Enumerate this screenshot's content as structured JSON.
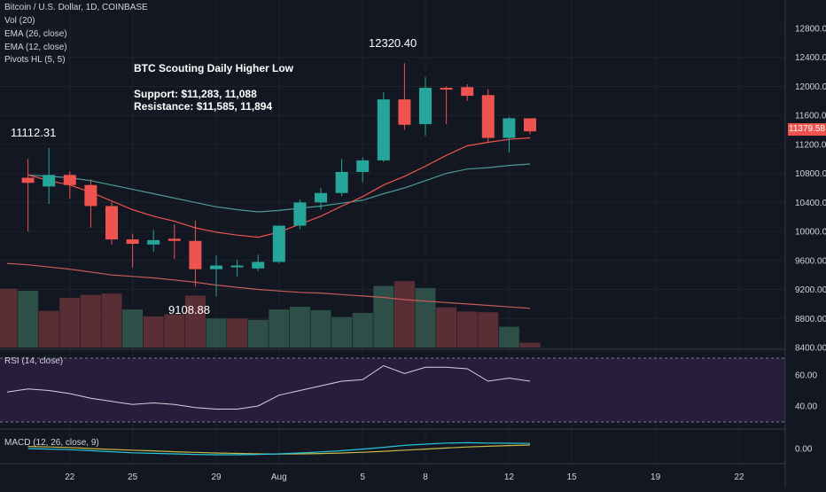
{
  "legends": {
    "symbol": "Bitcoin / U.S. Dollar, 1D, COINBASE",
    "volume": "Vol (20)",
    "ema26": "EMA (26, close)",
    "ema12": "EMA (12, close)",
    "pivots": "Pivots HL (5, 5)",
    "rsi": "RSI (14, close)",
    "macd": "MACD (12, 26, close, 9)"
  },
  "annotation": {
    "title": "BTC Scouting Daily Higher Low",
    "support": "Support: $11,283, 11,088",
    "resistance": "Resistance: $11,585, 11,894"
  },
  "pivots": {
    "high_left": "11112.31",
    "low": "9108.88",
    "high": "12320.40"
  },
  "current_price": "11379.58",
  "colors": {
    "up": "#26a69a",
    "down": "#ef5350",
    "ema12": "#ef5350",
    "ema26": "#4a9a94",
    "rsi_band": "#2a2040",
    "macd_line": "#26c6da",
    "signal_line": "#c9b84a"
  },
  "chart_data": {
    "type": "candlestick",
    "title": "Bitcoin / U.S. Dollar, 1D, COINBASE",
    "price_axis_ticks": [
      12800,
      12400,
      12000,
      11600,
      11200,
      10800,
      10400,
      10000,
      9600,
      9200,
      8800,
      8400
    ],
    "price_range": [
      8400,
      12900
    ],
    "date_axis_ticks": [
      "22",
      "25",
      "29",
      "Aug",
      "5",
      "8",
      "12",
      "15",
      "19",
      "22"
    ],
    "candles": [
      {
        "day": 1,
        "o": 10740,
        "h": 11000,
        "l": 10000,
        "c": 10670
      },
      {
        "day": 2,
        "o": 10620,
        "h": 11150,
        "l": 10380,
        "c": 10780
      },
      {
        "day": 3,
        "o": 10780,
        "h": 10830,
        "l": 10450,
        "c": 10640
      },
      {
        "day": 4,
        "o": 10640,
        "h": 10720,
        "l": 10050,
        "c": 10350
      },
      {
        "day": 5,
        "o": 10350,
        "h": 10400,
        "l": 9820,
        "c": 9890
      },
      {
        "day": 6,
        "o": 9890,
        "h": 9970,
        "l": 9500,
        "c": 9830
      },
      {
        "day": 7,
        "o": 9820,
        "h": 10020,
        "l": 9720,
        "c": 9880
      },
      {
        "day": 8,
        "o": 9900,
        "h": 10100,
        "l": 9620,
        "c": 9870
      },
      {
        "day": 9,
        "o": 9870,
        "h": 10150,
        "l": 9240,
        "c": 9480
      },
      {
        "day": 10,
        "o": 9480,
        "h": 9670,
        "l": 9109,
        "c": 9530
      },
      {
        "day": 11,
        "o": 9510,
        "h": 9610,
        "l": 9380,
        "c": 9530
      },
      {
        "day": 12,
        "o": 9490,
        "h": 9680,
        "l": 9450,
        "c": 9580
      },
      {
        "day": 13,
        "o": 9580,
        "h": 10080,
        "l": 9560,
        "c": 10080
      },
      {
        "day": 14,
        "o": 10080,
        "h": 10440,
        "l": 10030,
        "c": 10400
      },
      {
        "day": 15,
        "o": 10400,
        "h": 10600,
        "l": 10300,
        "c": 10530
      },
      {
        "day": 16,
        "o": 10530,
        "h": 11000,
        "l": 10490,
        "c": 10820
      },
      {
        "day": 17,
        "o": 10820,
        "h": 11020,
        "l": 10680,
        "c": 10980
      },
      {
        "day": 18,
        "o": 10980,
        "h": 11920,
        "l": 10960,
        "c": 11820
      },
      {
        "day": 19,
        "o": 11820,
        "h": 12320,
        "l": 11400,
        "c": 11470
      },
      {
        "day": 20,
        "o": 11480,
        "h": 12130,
        "l": 11320,
        "c": 11980
      },
      {
        "day": 21,
        "o": 11980,
        "h": 12000,
        "l": 11480,
        "c": 11960
      },
      {
        "day": 22,
        "o": 11990,
        "h": 12030,
        "l": 11800,
        "c": 11870
      },
      {
        "day": 23,
        "o": 11880,
        "h": 11960,
        "l": 11220,
        "c": 11290
      },
      {
        "day": 24,
        "o": 11290,
        "h": 11580,
        "l": 11090,
        "c": 11560
      },
      {
        "day": 25,
        "o": 11560,
        "h": 11560,
        "l": 11340,
        "c": 11380
      }
    ],
    "volume": [
      {
        "day": 0,
        "v": 0.85,
        "dir": "down"
      },
      {
        "day": 1,
        "v": 0.82,
        "dir": "up"
      },
      {
        "day": 2,
        "v": 0.53,
        "dir": "down"
      },
      {
        "day": 3,
        "v": 0.72,
        "dir": "down"
      },
      {
        "day": 4,
        "v": 0.76,
        "dir": "down"
      },
      {
        "day": 5,
        "v": 0.78,
        "dir": "down"
      },
      {
        "day": 6,
        "v": 0.55,
        "dir": "up"
      },
      {
        "day": 7,
        "v": 0.45,
        "dir": "down"
      },
      {
        "day": 8,
        "v": 0.48,
        "dir": "down"
      },
      {
        "day": 9,
        "v": 0.75,
        "dir": "down"
      },
      {
        "day": 10,
        "v": 0.42,
        "dir": "up"
      },
      {
        "day": 11,
        "v": 0.42,
        "dir": "down"
      },
      {
        "day": 12,
        "v": 0.4,
        "dir": "up"
      },
      {
        "day": 13,
        "v": 0.55,
        "dir": "up"
      },
      {
        "day": 14,
        "v": 0.59,
        "dir": "up"
      },
      {
        "day": 15,
        "v": 0.54,
        "dir": "up"
      },
      {
        "day": 16,
        "v": 0.44,
        "dir": "up"
      },
      {
        "day": 17,
        "v": 0.5,
        "dir": "up"
      },
      {
        "day": 18,
        "v": 0.89,
        "dir": "up"
      },
      {
        "day": 19,
        "v": 0.96,
        "dir": "down"
      },
      {
        "day": 20,
        "v": 0.86,
        "dir": "up"
      },
      {
        "day": 21,
        "v": 0.58,
        "dir": "down"
      },
      {
        "day": 22,
        "v": 0.52,
        "dir": "down"
      },
      {
        "day": 23,
        "v": 0.51,
        "dir": "down"
      },
      {
        "day": 24,
        "v": 0.3,
        "dir": "up"
      },
      {
        "day": 25,
        "v": 0.07,
        "dir": "down"
      }
    ],
    "ema12": [
      10780,
      10700,
      10640,
      10540,
      10420,
      10300,
      10210,
      10140,
      10050,
      9990,
      9950,
      9920,
      9990,
      10100,
      10210,
      10350,
      10480,
      10640,
      10760,
      10900,
      11050,
      11180,
      11230,
      11270,
      11290
    ],
    "ema26": [
      10780,
      10760,
      10740,
      10700,
      10640,
      10580,
      10520,
      10460,
      10400,
      10340,
      10300,
      10270,
      10290,
      10320,
      10350,
      10390,
      10430,
      10520,
      10600,
      10700,
      10800,
      10860,
      10880,
      10910,
      10930
    ],
    "lower_ma": [
      9560,
      9540,
      9510,
      9480,
      9440,
      9400,
      9380,
      9360,
      9330,
      9300,
      9260,
      9230,
      9200,
      9180,
      9160,
      9150,
      9130,
      9110,
      9090,
      9060,
      9040,
      9020,
      9000,
      8980,
      8960,
      8940
    ],
    "rsi": {
      "ticks": [
        60.0,
        40.0
      ],
      "range": [
        25,
        75
      ],
      "values": [
        49,
        51,
        50,
        48,
        45,
        43,
        41,
        42,
        41,
        39,
        38,
        38,
        40,
        47,
        50,
        53,
        56,
        57,
        66,
        61,
        65,
        65,
        64,
        56,
        58,
        56
      ]
    },
    "macd": {
      "ticks": [
        0.0
      ],
      "macd": [
        0.0,
        -0.05,
        -0.1,
        -0.2,
        -0.3,
        -0.4,
        -0.45,
        -0.5,
        -0.55,
        -0.58,
        -0.58,
        -0.55,
        -0.5,
        -0.42,
        -0.32,
        -0.2,
        -0.05,
        0.12,
        0.3,
        0.42,
        0.52,
        0.55,
        0.52,
        0.5,
        0.48
      ],
      "signal": [
        0.2,
        0.15,
        0.1,
        0.0,
        -0.08,
        -0.15,
        -0.22,
        -0.3,
        -0.36,
        -0.42,
        -0.46,
        -0.5,
        -0.52,
        -0.5,
        -0.47,
        -0.42,
        -0.35,
        -0.26,
        -0.15,
        -0.05,
        0.05,
        0.15,
        0.22,
        0.28,
        0.33
      ]
    }
  }
}
